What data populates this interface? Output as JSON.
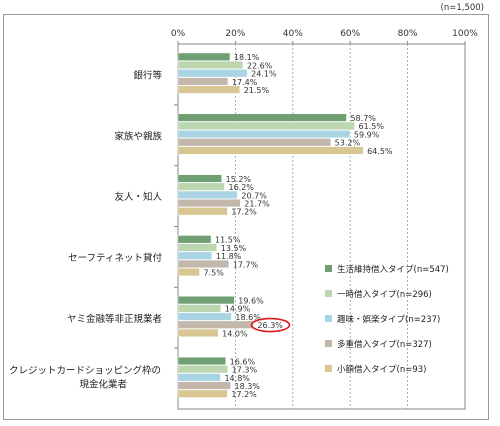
{
  "chart_data": {
    "type": "bar",
    "orientation": "horizontal",
    "note": "(n=1,500)",
    "xlim": [
      0,
      100
    ],
    "tick_labels": [
      "0%",
      "20%",
      "40%",
      "60%",
      "80%",
      "100%"
    ],
    "categories": [
      "銀行等",
      "家族や親族",
      "友人・知人",
      "セーフティネット貸付",
      "ヤミ金融等非正規業者",
      "クレジットカードショッピング枠の現金化業者"
    ],
    "series": [
      {
        "name": "生活維持借入タイプ(n=547)",
        "color": "#6f9f72",
        "values": [
          18.1,
          58.7,
          15.2,
          11.5,
          19.6,
          16.6
        ]
      },
      {
        "name": "一時借入タイプ(n=296)",
        "color": "#bcd6b0",
        "values": [
          22.6,
          61.5,
          16.2,
          13.5,
          14.9,
          17.3
        ]
      },
      {
        "name": "趣味・娯楽タイプ(n=237)",
        "color": "#a9d4e3",
        "values": [
          24.1,
          59.9,
          20.7,
          11.8,
          18.6,
          14.8
        ]
      },
      {
        "name": "多重借入タイプ(n=327)",
        "color": "#c3b7ab",
        "values": [
          17.4,
          53.2,
          21.7,
          17.7,
          26.3,
          18.3
        ]
      },
      {
        "name": "小額借入タイプ(n=93)",
        "color": "#d8c792",
        "values": [
          21.5,
          64.5,
          17.2,
          7.5,
          14.0,
          17.2
        ]
      }
    ],
    "highlight": {
      "category_index": 4,
      "series_index": 3,
      "color": "#e0191e"
    },
    "grid": true,
    "legend_position": "right"
  }
}
